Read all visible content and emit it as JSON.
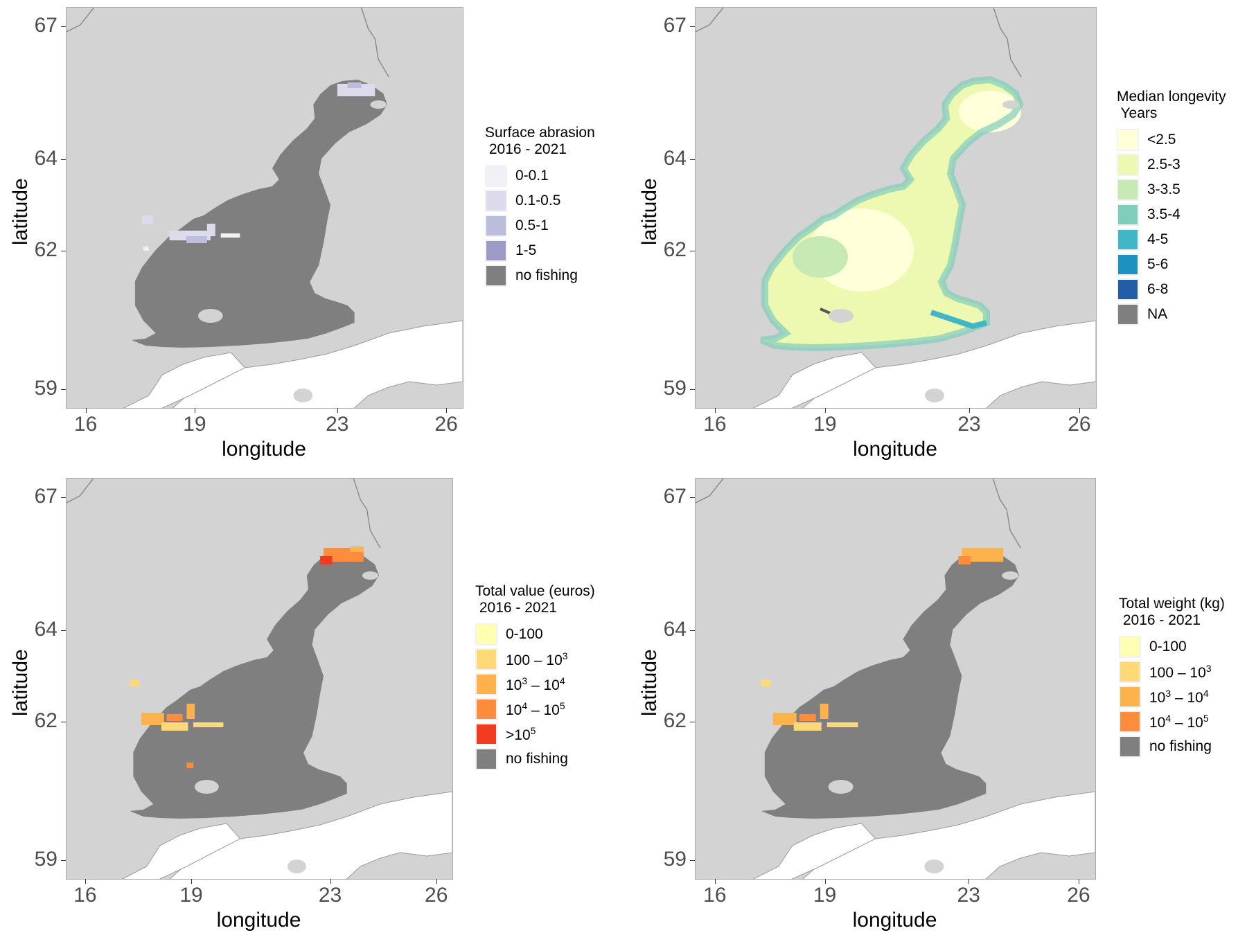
{
  "axis": {
    "xlabel": "longitude",
    "ylabel": "latitude",
    "xticks": [
      "16",
      "19",
      "23",
      "26"
    ],
    "yticks": [
      "67",
      "64",
      "62",
      "59"
    ]
  },
  "colors": {
    "land": "#d3d3d3",
    "water": "#ffffff",
    "no_fishing": "#7f7f7f",
    "border": "#8c8c8c"
  },
  "panels": [
    {
      "id": "surface-abrasion",
      "legend_title": "Surface abrasion\n 2016 - 2021",
      "legend": [
        {
          "label": "0-0.1",
          "color": "#f0f0f5"
        },
        {
          "label": "0.1-0.5",
          "color": "#dcdbeb"
        },
        {
          "label": "0.5-1",
          "color": "#bcbddc"
        },
        {
          "label": "1-5",
          "color": "#9e9ac8"
        },
        {
          "label": "no fishing",
          "color": "#7f7f7f"
        }
      ]
    },
    {
      "id": "median-longevity",
      "legend_title": "Median longevity\n Years",
      "legend": [
        {
          "label": "<2.5",
          "color": "#ffffd9"
        },
        {
          "label": "2.5-3",
          "color": "#edf8b1"
        },
        {
          "label": "3-3.5",
          "color": "#c7e9b4"
        },
        {
          "label": "3.5-4",
          "color": "#7fcdbb"
        },
        {
          "label": "4-5",
          "color": "#41b6c4"
        },
        {
          "label": "5-6",
          "color": "#1d91c0"
        },
        {
          "label": "6-8",
          "color": "#225ea8"
        },
        {
          "label": "NA",
          "color": "#7f7f7f"
        }
      ]
    },
    {
      "id": "total-value",
      "legend_title": "Total value (euros)\n 2016 - 2021",
      "legend": [
        {
          "label": "0-100",
          "color": "#ffffb2"
        },
        {
          "label": "100 – 10",
          "sup": "3",
          "color": "#fed976"
        },
        {
          "label": "10",
          "sup": "3",
          "label2": " – 10",
          "sup2": "4",
          "color": "#feb24c"
        },
        {
          "label": "10",
          "sup": "4",
          "label2": " – 10",
          "sup2": "5",
          "color": "#fd8d3c"
        },
        {
          "label": ">10",
          "sup": "5",
          "color": "#f03b20"
        },
        {
          "label": "no fishing",
          "color": "#7f7f7f"
        }
      ]
    },
    {
      "id": "total-weight",
      "legend_title": "Total weight (kg)\n 2016 - 2021",
      "legend": [
        {
          "label": "0-100",
          "color": "#ffffb2"
        },
        {
          "label": "100 – 10",
          "sup": "3",
          "color": "#fed976"
        },
        {
          "label": "10",
          "sup": "3",
          "label2": " – 10",
          "sup2": "4",
          "color": "#feb24c"
        },
        {
          "label": "10",
          "sup": "4",
          "label2": " – 10",
          "sup2": "5",
          "color": "#fd8d3c"
        },
        {
          "label": "no fishing",
          "color": "#7f7f7f"
        }
      ]
    }
  ]
}
